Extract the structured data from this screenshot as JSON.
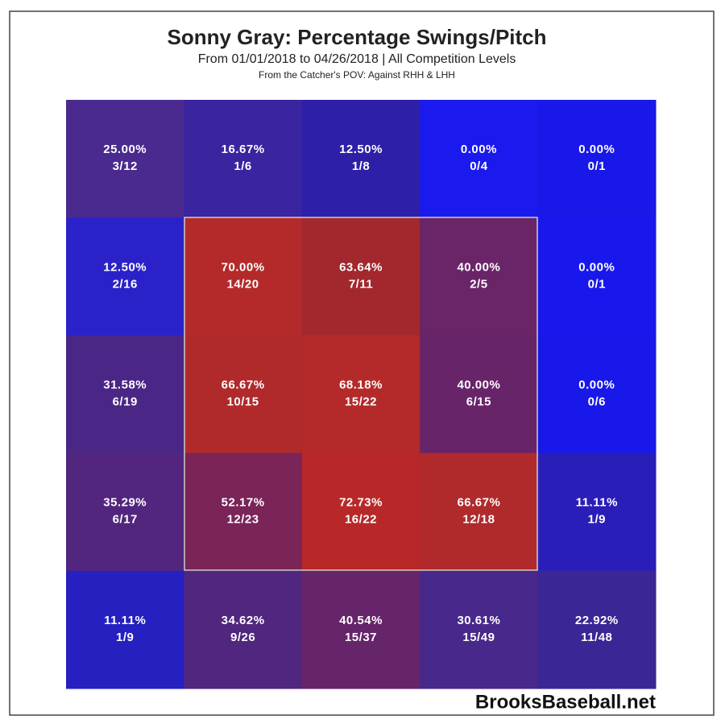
{
  "chart_data": {
    "type": "heatmap",
    "title": "Sonny Gray: Percentage Swings/Pitch",
    "subtitle": "From 01/01/2018 to 04/26/2018 | All Competition Levels",
    "note": "From the Catcher's POV:   Against RHH & LHH",
    "watermark": "BrooksBaseball.net",
    "values": [
      [
        25.0,
        16.67,
        12.5,
        0.0,
        0.0
      ],
      [
        12.5,
        70.0,
        63.64,
        40.0,
        0.0
      ],
      [
        31.58,
        66.67,
        68.18,
        40.0,
        0.0
      ],
      [
        35.29,
        52.17,
        72.73,
        66.67,
        11.11
      ],
      [
        11.11,
        34.62,
        40.54,
        30.61,
        22.92
      ]
    ],
    "value_labels": [
      [
        "25.00%",
        "16.67%",
        "12.50%",
        "0.00%",
        "0.00%"
      ],
      [
        "12.50%",
        "70.00%",
        "63.64%",
        "40.00%",
        "0.00%"
      ],
      [
        "31.58%",
        "66.67%",
        "68.18%",
        "40.00%",
        "0.00%"
      ],
      [
        "35.29%",
        "52.17%",
        "72.73%",
        "66.67%",
        "11.11%"
      ],
      [
        "11.11%",
        "34.62%",
        "40.54%",
        "30.61%",
        "22.92%"
      ]
    ],
    "counts": [
      [
        "3/12",
        "1/6",
        "1/8",
        "0/4",
        "0/1"
      ],
      [
        "2/16",
        "14/20",
        "7/11",
        "2/5",
        "0/1"
      ],
      [
        "6/19",
        "10/15",
        "15/22",
        "6/15",
        "0/6"
      ],
      [
        "6/17",
        "12/23",
        "16/22",
        "12/18",
        "1/9"
      ],
      [
        "1/9",
        "9/26",
        "15/37",
        "15/49",
        "11/48"
      ]
    ],
    "colors": [
      [
        "#4a2a8e",
        "#3a24a0",
        "#2e1fa8",
        "#1a1aee",
        "#1818e8"
      ],
      [
        "#2a22c8",
        "#b42a2a",
        "#a2282e",
        "#6a2468",
        "#1818ec"
      ],
      [
        "#4a2686",
        "#b02a2c",
        "#b42a2a",
        "#682468",
        "#1818ea"
      ],
      [
        "#52267e",
        "#7a2458",
        "#b82828",
        "#b02a2c",
        "#2a1eb8"
      ],
      [
        "#2620c0",
        "#50267e",
        "#66246a",
        "#48288a",
        "#3c2696"
      ]
    ]
  }
}
